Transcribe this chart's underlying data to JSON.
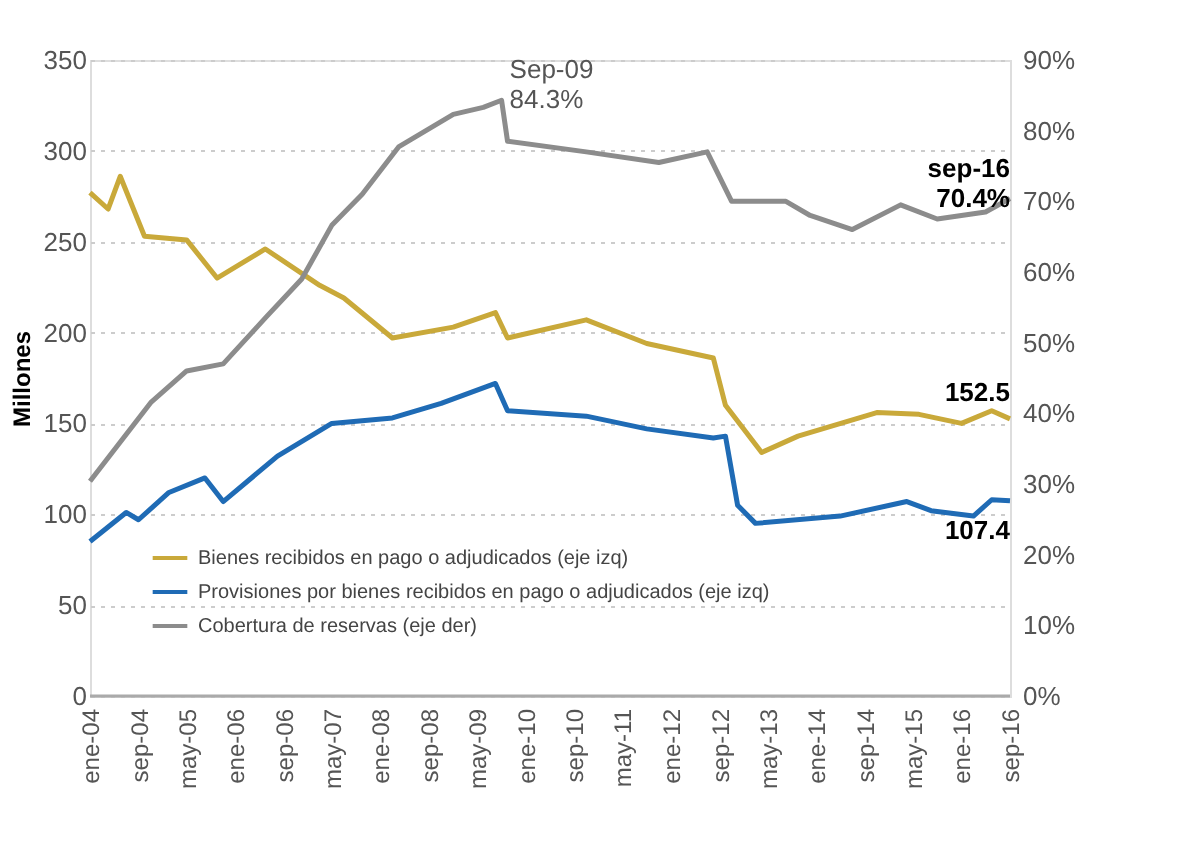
{
  "chart_data": {
    "type": "line",
    "ylabel": "Millones",
    "xlim": [
      "2004-01",
      "2016-09"
    ],
    "xticks": [
      {
        "value": "2004-01",
        "label": "ene-04"
      },
      {
        "value": "2004-09",
        "label": "sep-04"
      },
      {
        "value": "2005-05",
        "label": "may-05"
      },
      {
        "value": "2006-01",
        "label": "ene-06"
      },
      {
        "value": "2006-09",
        "label": "sep-06"
      },
      {
        "value": "2007-05",
        "label": "may-07"
      },
      {
        "value": "2008-01",
        "label": "ene-08"
      },
      {
        "value": "2008-09",
        "label": "sep-08"
      },
      {
        "value": "2009-05",
        "label": "may-09"
      },
      {
        "value": "2010-01",
        "label": "ene-10"
      },
      {
        "value": "2010-09",
        "label": "sep-10"
      },
      {
        "value": "2011-05",
        "label": "may-11"
      },
      {
        "value": "2012-01",
        "label": "ene-12"
      },
      {
        "value": "2012-09",
        "label": "sep-12"
      },
      {
        "value": "2013-05",
        "label": "may-13"
      },
      {
        "value": "2014-01",
        "label": "ene-14"
      },
      {
        "value": "2014-09",
        "label": "sep-14"
      },
      {
        "value": "2015-05",
        "label": "may-15"
      },
      {
        "value": "2016-01",
        "label": "ene-16"
      },
      {
        "value": "2016-09",
        "label": "sep-16"
      }
    ],
    "ylim": [
      0,
      350
    ],
    "yticks": [
      0,
      50,
      100,
      150,
      200,
      250,
      300,
      350
    ],
    "y2lim": [
      0,
      90
    ],
    "y2ticks": [
      {
        "value": 0,
        "label": "0%"
      },
      {
        "value": 10,
        "label": "10%"
      },
      {
        "value": 20,
        "label": "20%"
      },
      {
        "value": 30,
        "label": "30%"
      },
      {
        "value": 40,
        "label": "40%"
      },
      {
        "value": 50,
        "label": "50%"
      },
      {
        "value": 60,
        "label": "60%"
      },
      {
        "value": 70,
        "label": "70%"
      },
      {
        "value": 80,
        "label": "80%"
      },
      {
        "value": 90,
        "label": "90%"
      }
    ],
    "grid": "y",
    "legend": "bottom left",
    "line_style": "solid",
    "marker": "none",
    "series": [
      {
        "name": "Bienes recibidos en pago o adjudicados (eje izq)",
        "color": "#c9a93a",
        "x": [
          "2004-01",
          "2004-04",
          "2004-06",
          "2004-10",
          "2005-05",
          "2005-10",
          "2006-06",
          "2007-03",
          "2007-07",
          "2008-03",
          "2009-01",
          "2009-08",
          "2009-10",
          "2010-11",
          "2011-09",
          "2012-08",
          "2012-10",
          "2013-04",
          "2013-10",
          "2014-11",
          "2015-06",
          "2016-01",
          "2016-06",
          "2016-09"
        ],
        "values": [
          277,
          268,
          286,
          253,
          251,
          230,
          246,
          226,
          219,
          197,
          203,
          211,
          197,
          207,
          194,
          186,
          160,
          134,
          143,
          156,
          155,
          150,
          157,
          152.5
        ],
        "value_labels": [
          null,
          null,
          null,
          null,
          null,
          null,
          null,
          null,
          null,
          null,
          null,
          null,
          null,
          null,
          null,
          null,
          null,
          null,
          null,
          null,
          null,
          null,
          null,
          "152.5"
        ]
      },
      {
        "name": "Provisiones por bienes recibidos en pago o adjudicados (eje izq)",
        "color": "#1f6bb5",
        "x": [
          "2004-01",
          "2004-07",
          "2004-09",
          "2005-02",
          "2005-08",
          "2005-11",
          "2006-08",
          "2007-05",
          "2008-03",
          "2008-11",
          "2009-08",
          "2009-10",
          "2010-11",
          "2011-09",
          "2012-08",
          "2012-10",
          "2012-12",
          "2013-03",
          "2014-05",
          "2015-04",
          "2015-08",
          "2016-03",
          "2016-06",
          "2016-09"
        ],
        "values": [
          85,
          101,
          97,
          112,
          120,
          107,
          132,
          150,
          153,
          161,
          172,
          157,
          154,
          147,
          142,
          143,
          105,
          95,
          99,
          107,
          102,
          99,
          108,
          107.4
        ],
        "value_labels": [
          null,
          null,
          null,
          null,
          null,
          null,
          null,
          null,
          null,
          null,
          null,
          null,
          null,
          null,
          null,
          null,
          null,
          null,
          null,
          null,
          null,
          null,
          null,
          "107.4"
        ]
      },
      {
        "name": "Cobertura de reservas (eje der)",
        "color": "#8c8c8c",
        "axis": "y2",
        "x": [
          "2004-01",
          "2004-11",
          "2005-05",
          "2005-11",
          "2006-06",
          "2006-12",
          "2007-05",
          "2007-10",
          "2008-04",
          "2009-01",
          "2009-06",
          "2009-09",
          "2009-10",
          "2010-11",
          "2011-11",
          "2012-07",
          "2012-11",
          "2013-08",
          "2013-12",
          "2014-07",
          "2015-03",
          "2015-09",
          "2016-05",
          "2016-09"
        ],
        "values": [
          30.4,
          41.5,
          46,
          47,
          53.5,
          59,
          66.6,
          71,
          77.7,
          82.3,
          83.3,
          84.3,
          78.5,
          77,
          75.5,
          77,
          70,
          70,
          68,
          66,
          69.5,
          67.5,
          68.5,
          70.4
        ],
        "value_labels": [
          null,
          null,
          null,
          null,
          null,
          null,
          null,
          null,
          null,
          null,
          null,
          "Sep-09\n84.3%",
          null,
          null,
          null,
          null,
          null,
          null,
          null,
          null,
          null,
          null,
          null,
          "sep-16\n70.4%"
        ]
      }
    ]
  }
}
